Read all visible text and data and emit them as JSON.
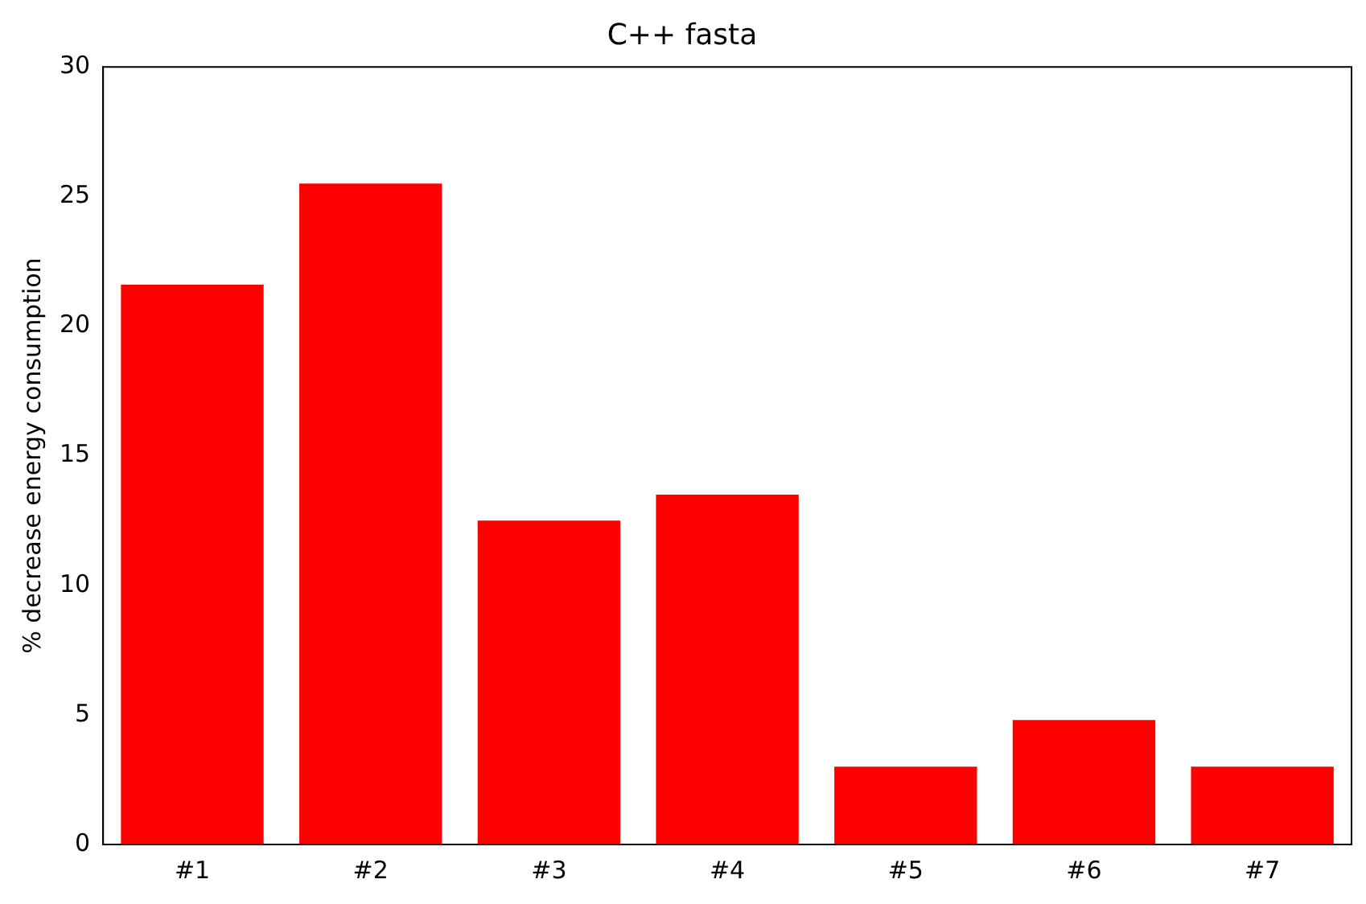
{
  "chart_data": {
    "type": "bar",
    "title": "C++ fasta",
    "ylabel": "% decrease energy consumption",
    "categories": [
      "#1",
      "#2",
      "#3",
      "#4",
      "#5",
      "#6",
      "#7"
    ],
    "values": [
      21.6,
      25.5,
      12.5,
      13.5,
      3.0,
      4.8,
      3.0
    ],
    "color": "#ff0000",
    "ylim": [
      0,
      30
    ],
    "yticks": [
      0,
      5,
      10,
      15,
      20,
      25,
      30
    ],
    "grid": false,
    "legend": false
  }
}
